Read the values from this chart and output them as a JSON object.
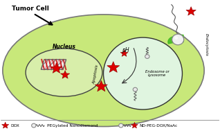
{
  "bg_color": "#ffffff",
  "cell_color": "#c8e87a",
  "cell_edge_color": "#777777",
  "nucleus_color": "#d8eeaa",
  "nucleus_edge_color": "#444444",
  "endosome_color": "#e0f5e0",
  "endosome_edge_color": "#333333",
  "endocytosis_green": "#44bb22",
  "xlim": [
    0,
    10
  ],
  "ylim": [
    0,
    6.5
  ],
  "tumor_cell_label": "Tumor Cell",
  "nucleus_label": "Nucleus",
  "apoptosis_label": "Apoptosis",
  "endosome_label": "Endosome or\nLysosome",
  "ph_label": "pH",
  "endocytosis_label": "Endocytosis",
  "legend_dox": "DOX",
  "legend_nd": "PEGylated Nanodiamond",
  "legend_nd_star": "ND-PEG-DOX/NaAc"
}
